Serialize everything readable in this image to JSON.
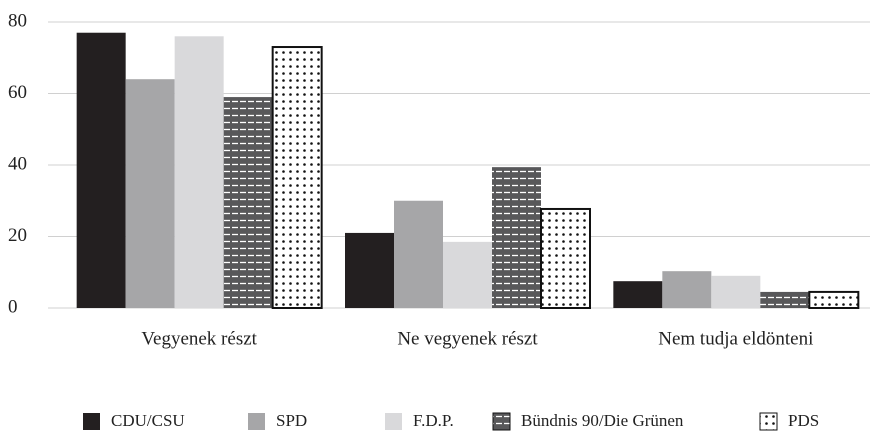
{
  "chart_data": {
    "type": "bar",
    "categories": [
      "Vegyenek részt",
      "Ne vegyenek részt",
      "Nem tudja eldönteni"
    ],
    "series": [
      {
        "name": "CDU/CSU",
        "color": "#231f20",
        "values": [
          77,
          21,
          7.5
        ]
      },
      {
        "name": "SPD",
        "color": "#a6a6a8",
        "values": [
          64,
          30,
          10.3
        ]
      },
      {
        "name": "F.D.P.",
        "color": "#d9d9db",
        "values": [
          76,
          18.5,
          9
        ]
      },
      {
        "name": "Bündnis 90/Die Grünen",
        "color": "#58585a",
        "pattern": "dashes",
        "values": [
          59,
          39.4,
          4.5
        ]
      },
      {
        "name": "PDS",
        "color": "#ffffff",
        "pattern": "dots",
        "values": [
          73,
          27.7,
          4.5
        ]
      }
    ],
    "ylim": [
      0,
      80
    ],
    "yticks": [
      0,
      20,
      40,
      60,
      80
    ],
    "grid": true,
    "legend": "bottom"
  }
}
